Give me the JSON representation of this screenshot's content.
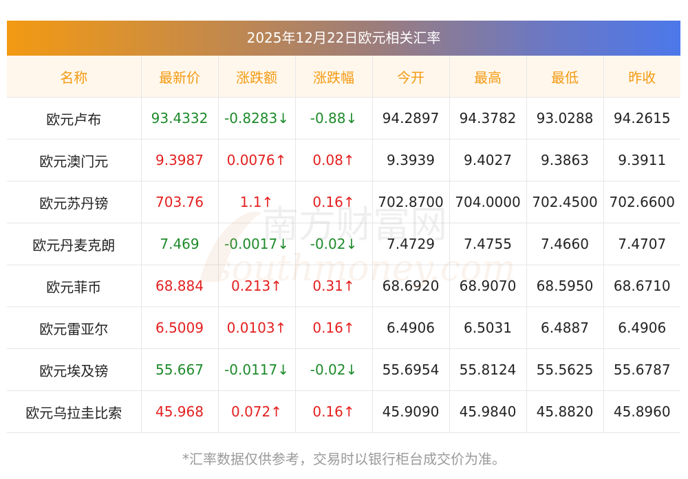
{
  "title": "2025年12月22日欧元相关汇率",
  "headers": [
    "名称",
    "最新价",
    "涨跌额",
    "涨跌幅",
    "今开",
    "最高",
    "最低",
    "昨收"
  ],
  "rows": [
    {
      "name": "欧元卢布",
      "latest": "93.4332",
      "change": "-0.8283↓",
      "pct": "-0.88↓",
      "open": "94.2897",
      "high": "94.3782",
      "low": "93.0288",
      "prev": "94.2615",
      "direction": "down"
    },
    {
      "name": "欧元澳门元",
      "latest": "9.3987",
      "change": "0.0076↑",
      "pct": "0.08↑",
      "open": "9.3939",
      "high": "9.4027",
      "low": "9.3863",
      "prev": "9.3911",
      "direction": "up"
    },
    {
      "name": "欧元苏丹镑",
      "latest": "703.76",
      "change": "1.1↑",
      "pct": "0.16↑",
      "open": "702.8700",
      "high": "704.0000",
      "low": "702.4500",
      "prev": "702.6600",
      "direction": "up"
    },
    {
      "name": "欧元丹麦克朗",
      "latest": "7.469",
      "change": "-0.0017↓",
      "pct": "-0.02↓",
      "open": "7.4729",
      "high": "7.4755",
      "low": "7.4660",
      "prev": "7.4707",
      "direction": "down"
    },
    {
      "name": "欧元菲币",
      "latest": "68.884",
      "change": "0.213↑",
      "pct": "0.31↑",
      "open": "68.6920",
      "high": "68.9070",
      "low": "68.5950",
      "prev": "68.6710",
      "direction": "up"
    },
    {
      "name": "欧元雷亚尔",
      "latest": "6.5009",
      "change": "0.0103↑",
      "pct": "0.16↑",
      "open": "6.4906",
      "high": "6.5031",
      "low": "6.4887",
      "prev": "6.4906",
      "direction": "up"
    },
    {
      "name": "欧元埃及镑",
      "latest": "55.667",
      "change": "-0.0117↓",
      "pct": "-0.02↓",
      "open": "55.6954",
      "high": "55.8124",
      "low": "55.5625",
      "prev": "55.6787",
      "direction": "down"
    },
    {
      "name": "欧元乌拉圭比索",
      "latest": "45.968",
      "change": "0.072↑",
      "pct": "0.16↑",
      "open": "45.9090",
      "high": "45.9840",
      "low": "45.8820",
      "prev": "45.8960",
      "direction": "up"
    }
  ],
  "watermark": {
    "cn": "南方财富网",
    "en": "southmoney.com"
  },
  "footnote": "*汇率数据仅供参考，交易时以银行柜台成交价为准。",
  "colors": {
    "up": "#e41f1f",
    "down": "#1d8a2a",
    "header_text": "#f39a12",
    "gradient_start": "#f39a12",
    "gradient_end": "#4c78ea"
  }
}
